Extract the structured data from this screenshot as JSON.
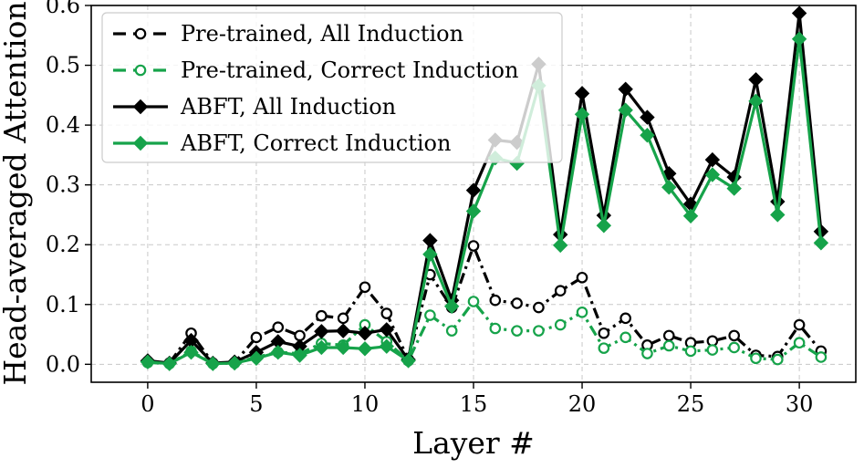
{
  "chart_data": {
    "type": "line",
    "title": "",
    "xlabel": "Layer #",
    "ylabel": "Head-averaged Attention",
    "xlim": [
      -2.6,
      32.6
    ],
    "ylim": [
      -0.03,
      0.6
    ],
    "xticks": [
      0,
      5,
      10,
      15,
      20,
      25,
      30
    ],
    "yticks": [
      0.0,
      0.1,
      0.2,
      0.3,
      0.4,
      0.5,
      0.6
    ],
    "xtick_labels": [
      "0",
      "5",
      "10",
      "15",
      "20",
      "25",
      "30"
    ],
    "ytick_labels": [
      "0.0",
      "0.1",
      "0.2",
      "0.3",
      "0.4",
      "0.5",
      "0.6"
    ],
    "grid": true,
    "legend_position": "top-left",
    "x": [
      0,
      1,
      2,
      3,
      4,
      5,
      6,
      7,
      8,
      9,
      10,
      11,
      12,
      13,
      14,
      15,
      16,
      17,
      18,
      19,
      20,
      21,
      22,
      23,
      24,
      25,
      26,
      27,
      28,
      29,
      30,
      31
    ],
    "series": [
      {
        "name": "Pre-trained, All Induction",
        "color": "#000000",
        "marker": "open-circle",
        "linestyle": "dash-dot",
        "values": [
          0.005,
          0.002,
          0.052,
          0.002,
          0.003,
          0.045,
          0.062,
          0.048,
          0.081,
          0.077,
          0.129,
          0.085,
          0.008,
          0.15,
          0.095,
          0.198,
          0.107,
          0.102,
          0.095,
          0.123,
          0.145,
          0.052,
          0.077,
          0.032,
          0.048,
          0.036,
          0.039,
          0.048,
          0.015,
          0.013,
          0.066,
          0.022
        ]
      },
      {
        "name": "Pre-trained, Correct Induction",
        "color": "#16a34a",
        "marker": "open-circle",
        "linestyle": "dash-dot",
        "values": [
          0.003,
          0.001,
          0.022,
          0.001,
          0.002,
          0.012,
          0.02,
          0.018,
          0.035,
          0.032,
          0.066,
          0.038,
          0.006,
          0.082,
          0.056,
          0.105,
          0.06,
          0.056,
          0.056,
          0.066,
          0.087,
          0.027,
          0.045,
          0.018,
          0.031,
          0.022,
          0.024,
          0.028,
          0.01,
          0.008,
          0.036,
          0.012
        ]
      },
      {
        "name": "ABFT, All Induction",
        "color": "#000000",
        "marker": "filled-diamond",
        "linestyle": "solid",
        "values": [
          0.006,
          0.002,
          0.04,
          0.002,
          0.004,
          0.02,
          0.038,
          0.03,
          0.055,
          0.056,
          0.052,
          0.058,
          0.008,
          0.207,
          0.107,
          0.291,
          0.375,
          0.371,
          0.502,
          0.217,
          0.453,
          0.249,
          0.46,
          0.413,
          0.319,
          0.268,
          0.342,
          0.313,
          0.476,
          0.272,
          0.587,
          0.222
        ]
      },
      {
        "name": "ABFT, Correct Induction",
        "color": "#16a34a",
        "marker": "filled-diamond",
        "linestyle": "solid",
        "values": [
          0.004,
          0.001,
          0.02,
          0.001,
          0.002,
          0.01,
          0.02,
          0.015,
          0.028,
          0.028,
          0.026,
          0.03,
          0.006,
          0.184,
          0.097,
          0.256,
          0.345,
          0.336,
          0.466,
          0.199,
          0.418,
          0.232,
          0.425,
          0.383,
          0.296,
          0.248,
          0.317,
          0.294,
          0.44,
          0.25,
          0.544,
          0.203
        ]
      }
    ]
  }
}
